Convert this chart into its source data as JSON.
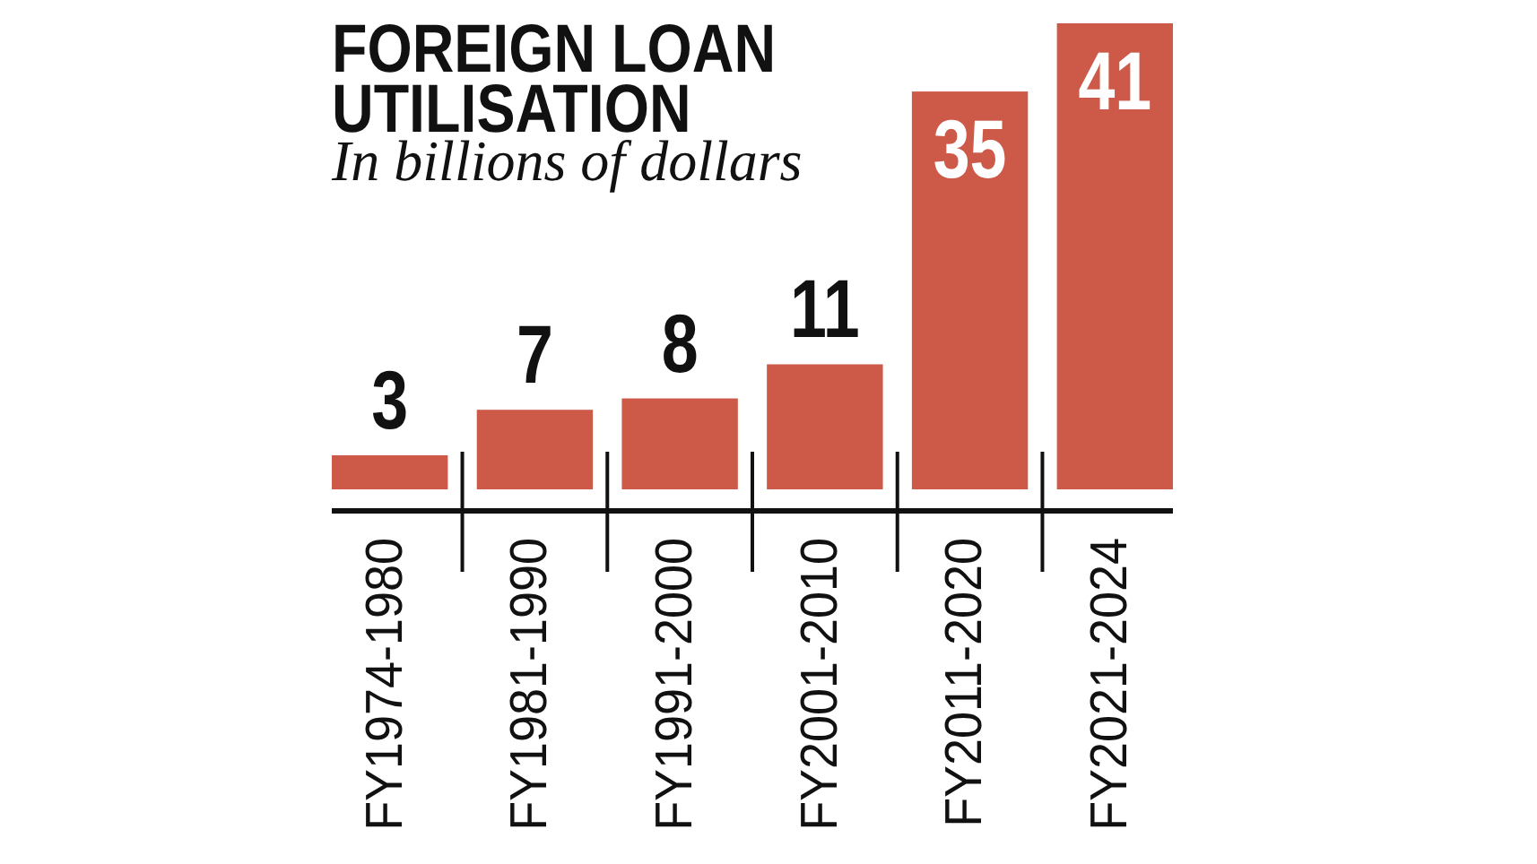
{
  "chart_data": {
    "type": "bar",
    "title": "FOREIGN LOAN UTILISATION",
    "subtitle": "In billions of dollars",
    "categories": [
      "FY1974-1980",
      "FY1981-1990",
      "FY1991-2000",
      "FY2001-2010",
      "FY2011-2020",
      "FY2021-2024"
    ],
    "values": [
      3,
      7,
      8,
      11,
      35,
      41
    ],
    "color": "#cd5a48",
    "data_labels": true
  }
}
